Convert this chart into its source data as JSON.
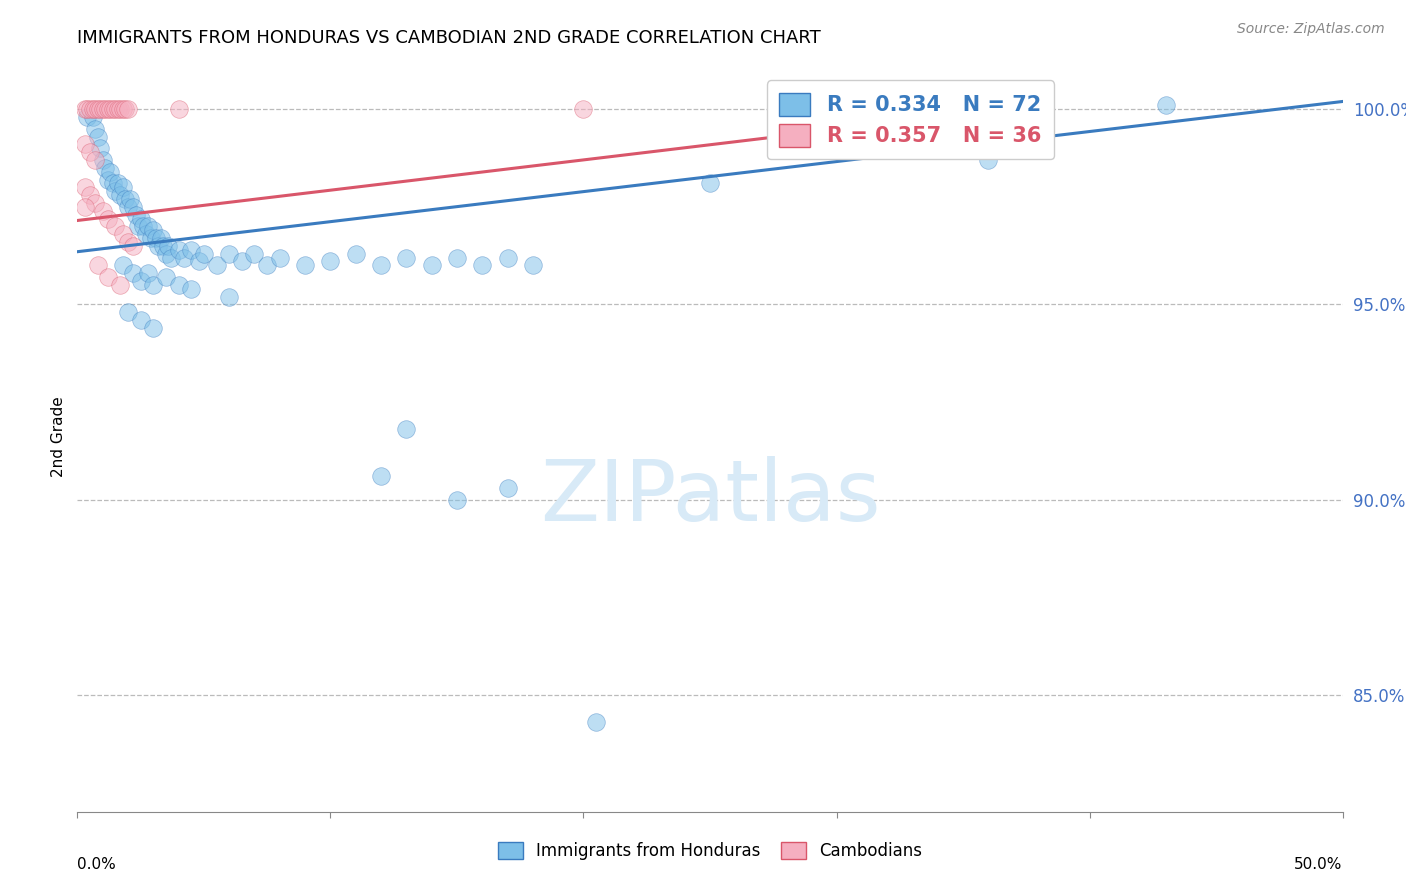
{
  "title": "IMMIGRANTS FROM HONDURAS VS CAMBODIAN 2ND GRADE CORRELATION CHART",
  "source": "Source: ZipAtlas.com",
  "ylabel": "2nd Grade",
  "xmin": 0.0,
  "xmax": 0.5,
  "ymin": 0.82,
  "ymax": 1.012,
  "yticks": [
    0.85,
    0.9,
    0.95,
    1.0
  ],
  "ytick_labels": [
    "85.0%",
    "90.0%",
    "95.0%",
    "100.0%"
  ],
  "blue_color": "#7dbfe8",
  "pink_color": "#f5afc0",
  "blue_line_color": "#3a7bbf",
  "pink_line_color": "#d9566a",
  "watermark_color": "#d8eaf7",
  "blue_scatter": [
    [
      0.004,
      0.998
    ],
    [
      0.006,
      0.998
    ],
    [
      0.007,
      0.995
    ],
    [
      0.008,
      0.993
    ],
    [
      0.009,
      0.99
    ],
    [
      0.01,
      0.987
    ],
    [
      0.011,
      0.985
    ],
    [
      0.012,
      0.982
    ],
    [
      0.013,
      0.984
    ],
    [
      0.014,
      0.981
    ],
    [
      0.015,
      0.979
    ],
    [
      0.016,
      0.981
    ],
    [
      0.017,
      0.978
    ],
    [
      0.018,
      0.98
    ],
    [
      0.019,
      0.977
    ],
    [
      0.02,
      0.975
    ],
    [
      0.021,
      0.977
    ],
    [
      0.022,
      0.975
    ],
    [
      0.023,
      0.973
    ],
    [
      0.024,
      0.97
    ],
    [
      0.025,
      0.972
    ],
    [
      0.026,
      0.97
    ],
    [
      0.027,
      0.968
    ],
    [
      0.028,
      0.97
    ],
    [
      0.029,
      0.967
    ],
    [
      0.03,
      0.969
    ],
    [
      0.031,
      0.967
    ],
    [
      0.032,
      0.965
    ],
    [
      0.033,
      0.967
    ],
    [
      0.034,
      0.965
    ],
    [
      0.035,
      0.963
    ],
    [
      0.036,
      0.965
    ],
    [
      0.037,
      0.962
    ],
    [
      0.04,
      0.964
    ],
    [
      0.042,
      0.962
    ],
    [
      0.045,
      0.964
    ],
    [
      0.048,
      0.961
    ],
    [
      0.05,
      0.963
    ],
    [
      0.055,
      0.96
    ],
    [
      0.06,
      0.963
    ],
    [
      0.065,
      0.961
    ],
    [
      0.07,
      0.963
    ],
    [
      0.075,
      0.96
    ],
    [
      0.08,
      0.962
    ],
    [
      0.09,
      0.96
    ],
    [
      0.1,
      0.961
    ],
    [
      0.11,
      0.963
    ],
    [
      0.12,
      0.96
    ],
    [
      0.13,
      0.962
    ],
    [
      0.14,
      0.96
    ],
    [
      0.15,
      0.962
    ],
    [
      0.16,
      0.96
    ],
    [
      0.17,
      0.962
    ],
    [
      0.18,
      0.96
    ],
    [
      0.018,
      0.96
    ],
    [
      0.022,
      0.958
    ],
    [
      0.025,
      0.956
    ],
    [
      0.028,
      0.958
    ],
    [
      0.03,
      0.955
    ],
    [
      0.035,
      0.957
    ],
    [
      0.04,
      0.955
    ],
    [
      0.02,
      0.948
    ],
    [
      0.025,
      0.946
    ],
    [
      0.03,
      0.944
    ],
    [
      0.045,
      0.954
    ],
    [
      0.06,
      0.952
    ],
    [
      0.12,
      0.906
    ],
    [
      0.17,
      0.903
    ],
    [
      0.13,
      0.918
    ],
    [
      0.15,
      0.9
    ],
    [
      0.205,
      0.843
    ],
    [
      0.25,
      0.981
    ],
    [
      0.36,
      0.987
    ],
    [
      0.43,
      1.001
    ]
  ],
  "pink_scatter": [
    [
      0.003,
      1.0
    ],
    [
      0.004,
      1.0
    ],
    [
      0.005,
      1.0
    ],
    [
      0.006,
      1.0
    ],
    [
      0.007,
      1.0
    ],
    [
      0.008,
      1.0
    ],
    [
      0.009,
      1.0
    ],
    [
      0.01,
      1.0
    ],
    [
      0.011,
      1.0
    ],
    [
      0.012,
      1.0
    ],
    [
      0.013,
      1.0
    ],
    [
      0.014,
      1.0
    ],
    [
      0.015,
      1.0
    ],
    [
      0.016,
      1.0
    ],
    [
      0.017,
      1.0
    ],
    [
      0.018,
      1.0
    ],
    [
      0.019,
      1.0
    ],
    [
      0.02,
      1.0
    ],
    [
      0.04,
      1.0
    ],
    [
      0.2,
      1.0
    ],
    [
      0.003,
      0.991
    ],
    [
      0.005,
      0.989
    ],
    [
      0.007,
      0.987
    ],
    [
      0.003,
      0.98
    ],
    [
      0.005,
      0.978
    ],
    [
      0.007,
      0.976
    ],
    [
      0.01,
      0.974
    ],
    [
      0.012,
      0.972
    ],
    [
      0.015,
      0.97
    ],
    [
      0.018,
      0.968
    ],
    [
      0.02,
      0.966
    ],
    [
      0.008,
      0.96
    ],
    [
      0.012,
      0.957
    ],
    [
      0.017,
      0.955
    ],
    [
      0.022,
      0.965
    ],
    [
      0.003,
      0.975
    ]
  ],
  "blue_line_x": [
    0.0,
    0.5
  ],
  "blue_line_y": [
    0.9635,
    1.002
  ],
  "pink_line_x": [
    0.0,
    0.38
  ],
  "pink_line_y": [
    0.9715,
    1.001
  ]
}
